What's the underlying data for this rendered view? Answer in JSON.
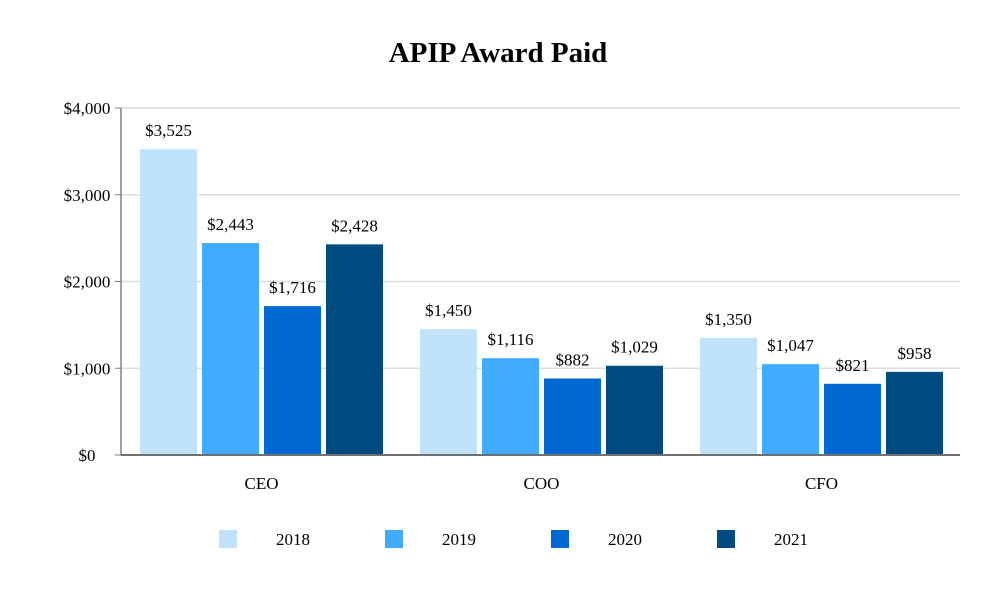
{
  "chart_data": {
    "type": "bar",
    "title": "APIP Award Paid",
    "xlabel": "",
    "ylabel": "",
    "categories": [
      "CEO",
      "COO",
      "CFO"
    ],
    "series": [
      {
        "name": "2018",
        "color": "#c0e2fb",
        "values": [
          3525,
          1450,
          1350
        ],
        "labels": [
          "$3,525",
          "$1,450",
          "$1,350"
        ]
      },
      {
        "name": "2019",
        "color": "#41acff",
        "values": [
          2443,
          1116,
          1047
        ],
        "labels": [
          "$2,443",
          "$1,116",
          "$1,047"
        ]
      },
      {
        "name": "2020",
        "color": "#006ad2",
        "values": [
          1716,
          882,
          821
        ],
        "labels": [
          "$1,716",
          "$882",
          "$821"
        ]
      },
      {
        "name": "2021",
        "color": "#004b80",
        "values": [
          2428,
          1029,
          958
        ],
        "labels": [
          "$2,428",
          "$1,029",
          "$958"
        ]
      }
    ],
    "ylim": [
      0,
      4000
    ],
    "yticks": [
      0,
      1000,
      2000,
      3000,
      4000
    ],
    "ytick_labels": [
      "$0",
      "$1,000",
      "$2,000",
      "$3,000",
      "$4,000"
    ],
    "grid": true,
    "legend_position": "bottom"
  }
}
